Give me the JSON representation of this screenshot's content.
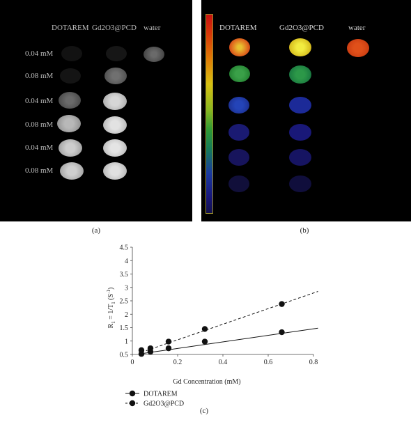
{
  "panel_a": {
    "columns": [
      "DOTAREM",
      "Gd2O3@PCD",
      "water"
    ],
    "rows": [
      "0.04 mM",
      "0.08 mM",
      "0.04 mM",
      "0.08 mM",
      "0.04 mM",
      "0.08 mM"
    ],
    "caption": "(a)"
  },
  "panel_b": {
    "columns": [
      "DOTAREM",
      "Gd2O3@PCD",
      "water"
    ],
    "caption": "(b)"
  },
  "chart_data": {
    "type": "scatter",
    "caption": "(c)",
    "xlabel": "Gd Concentration (mM)",
    "ylabel": "R1 = 1/T1 (S-1)",
    "ylabel_parts": [
      "R",
      "1",
      " = 1/T",
      "1",
      " (S",
      "-1",
      ")"
    ],
    "xlim": [
      0,
      0.8
    ],
    "ylim": [
      0.5,
      4.5
    ],
    "xticks": [
      0,
      0.2,
      0.4,
      0.6,
      0.8
    ],
    "xtick_labels": [
      "0",
      "0.2",
      "0.4",
      "0.6",
      "0.8"
    ],
    "yticks": [
      0.5,
      1,
      1.5,
      2,
      2.5,
      3,
      3.5,
      4,
      4.5
    ],
    "ytick_labels": [
      "0.5",
      "1",
      "1.5",
      "2",
      "2.5",
      "3",
      "3.5",
      "4",
      "4.5"
    ],
    "legend_position": "bottom-left",
    "series": [
      {
        "name": "DOTAREM",
        "x": [
          0.04,
          0.08,
          0.16,
          0.32,
          0.66
        ],
        "y": [
          0.52,
          0.6,
          0.73,
          0.98,
          1.33
        ],
        "trendline": {
          "x": [
            0.04,
            0.82
          ],
          "y": [
            0.53,
            1.48
          ],
          "style": "solid"
        }
      },
      {
        "name": "Gd2O3@PCD",
        "x": [
          0.04,
          0.08,
          0.16,
          0.32,
          0.66
        ],
        "y": [
          0.66,
          0.73,
          0.98,
          1.45,
          2.38
        ],
        "trendline": {
          "x": [
            0.04,
            0.82
          ],
          "y": [
            0.58,
            2.85
          ],
          "style": "dashed"
        }
      }
    ]
  }
}
